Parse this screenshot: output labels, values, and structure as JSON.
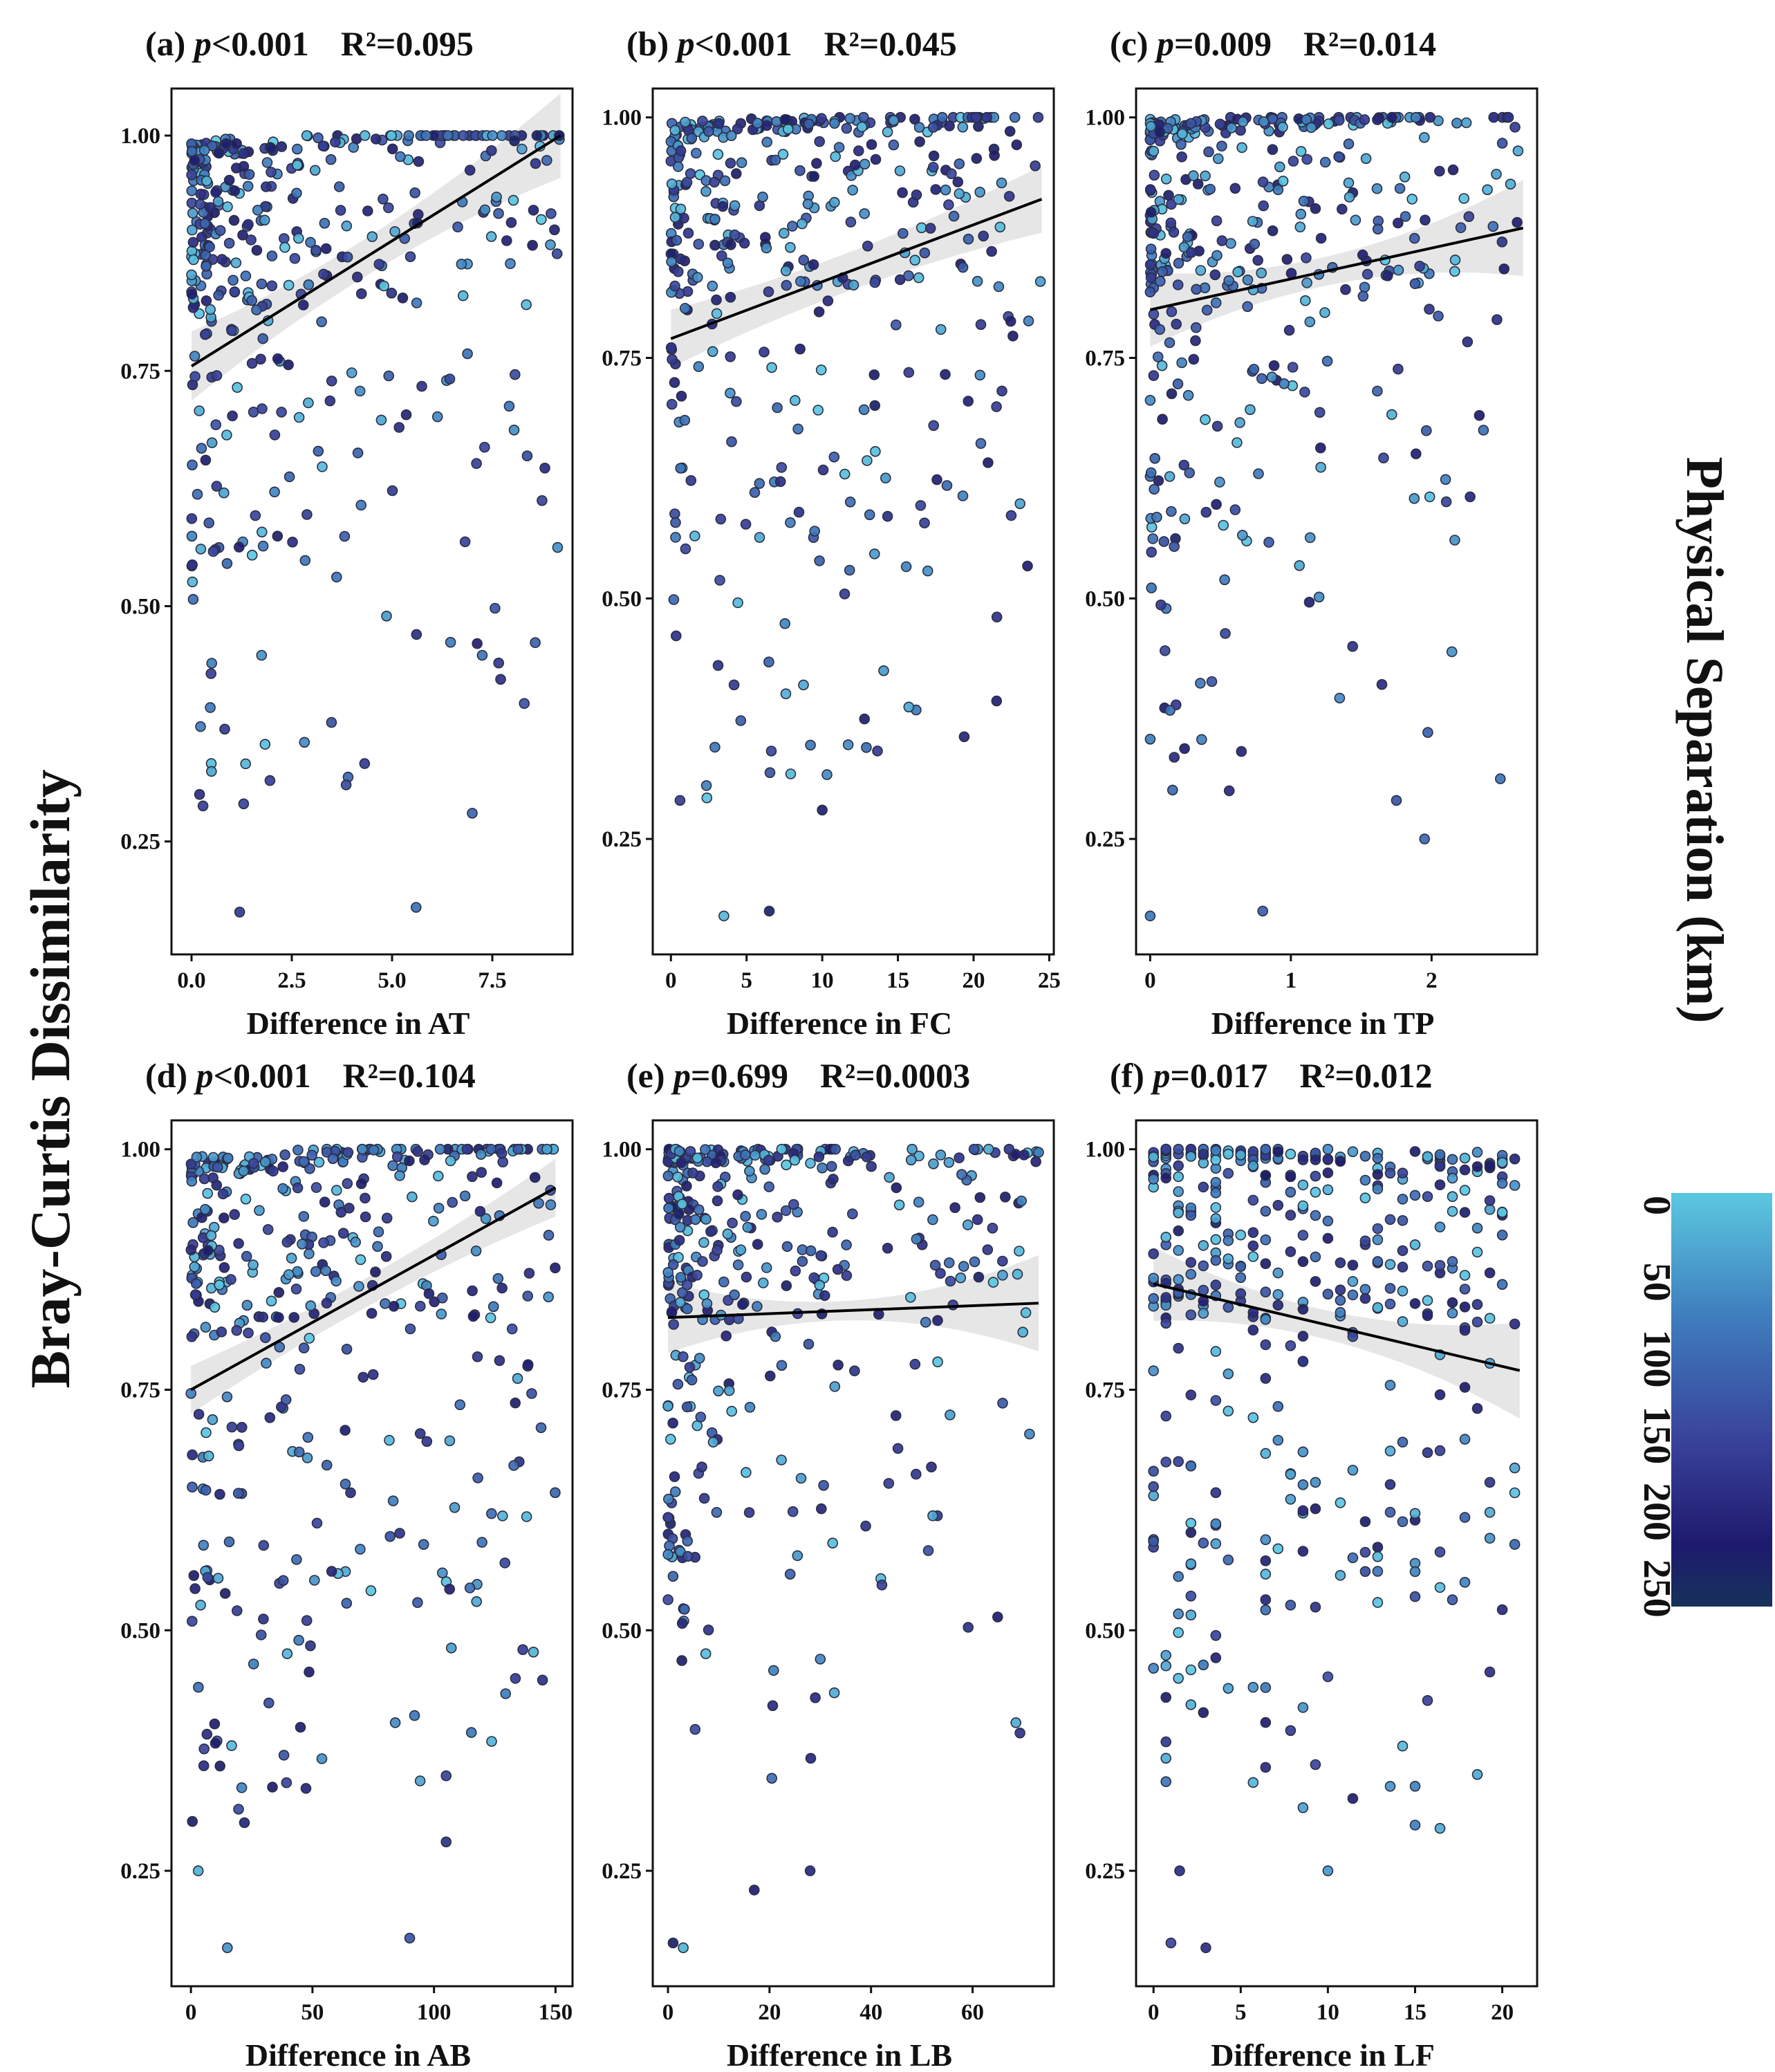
{
  "chart_data": {
    "type": "scatter",
    "shared_ylabel": "Bray-Curtis Dissimilarity",
    "colorbar": {
      "title": "Physical Separation (km)",
      "ticks": [
        "0",
        "50",
        "100",
        "150",
        "200",
        "250"
      ],
      "range": [
        0,
        270
      ],
      "colors": [
        "#5bc8e0",
        "#3e7dbd",
        "#39429a",
        "#1e1a6e",
        "#16325a"
      ]
    },
    "panels": [
      {
        "label": "(a)",
        "p_sym": "p",
        "p_text": "<0.001",
        "r2_text": "R²=0.095",
        "xlabel": "Difference in AT",
        "xlim": [
          -0.5,
          9.5
        ],
        "ylim": [
          0.13,
          1.05
        ],
        "xticks": [
          0,
          2.5,
          5,
          7.5
        ],
        "xtick_labels": [
          "0.0",
          "2.5",
          "5.0",
          "7.5"
        ],
        "yticks": [
          0.25,
          0.5,
          0.75,
          1
        ],
        "ytick_labels": [
          "0.25",
          "0.50",
          "0.75",
          "1.00"
        ],
        "xmax": 9.2,
        "fit": [
          0.755,
          1.0
        ],
        "band": [
          0.02,
          0.045
        ],
        "cluster": "low",
        "integer_x": false,
        "n": 420,
        "seed": 11,
        "extra_points": [
          [
            1.2,
            0.175
          ],
          [
            5.6,
            0.18
          ],
          [
            7.0,
            0.28
          ],
          [
            0.2,
            0.3
          ],
          [
            1.3,
            0.29
          ]
        ]
      },
      {
        "label": "(b)",
        "p_sym": "p",
        "p_text": "<0.001",
        "r2_text": "R²=0.045",
        "xlabel": "Difference in FC",
        "xlim": [
          -1.2,
          25.3
        ],
        "ylim": [
          0.13,
          1.03
        ],
        "xticks": [
          0,
          5,
          10,
          15,
          20,
          25
        ],
        "xtick_labels": [
          "0",
          "5",
          "10",
          "15",
          "20",
          "25"
        ],
        "yticks": [
          0.25,
          0.5,
          0.75,
          1
        ],
        "ytick_labels": [
          "0.25",
          "0.50",
          "0.75",
          "1.00"
        ],
        "xmax": 24.5,
        "fit": [
          0.77,
          0.915
        ],
        "band": [
          0.02,
          0.035
        ],
        "cluster": "spread",
        "integer_x": false,
        "n": 400,
        "seed": 23,
        "extra_points": [
          [
            3.5,
            0.17
          ],
          [
            6.5,
            0.175
          ],
          [
            10.0,
            0.28
          ],
          [
            0.6,
            0.29
          ]
        ]
      },
      {
        "label": "(c)",
        "p_sym": "p",
        "p_text": "=0.009",
        "r2_text": "R²=0.014",
        "xlabel": "Difference in TP",
        "xlim": [
          -0.1,
          2.75
        ],
        "ylim": [
          0.13,
          1.03
        ],
        "xticks": [
          0,
          1,
          2
        ],
        "xtick_labels": [
          "0",
          "1",
          "2"
        ],
        "yticks": [
          0.25,
          0.5,
          0.75,
          1
        ],
        "ytick_labels": [
          "0.25",
          "0.50",
          "0.75",
          "1.00"
        ],
        "xmax": 2.65,
        "fit": [
          0.8,
          0.885
        ],
        "band": [
          0.015,
          0.05
        ],
        "cluster": "low",
        "integer_x": false,
        "n": 400,
        "seed": 37,
        "extra_points": [
          [
            0.0,
            0.17
          ],
          [
            0.8,
            0.175
          ],
          [
            1.95,
            0.25
          ],
          [
            1.75,
            0.29
          ]
        ]
      },
      {
        "label": "(d)",
        "p_sym": "p",
        "p_text": "<0.001",
        "r2_text": "R²=0.104",
        "xlabel": "Difference in AB",
        "xlim": [
          -8,
          157
        ],
        "ylim": [
          0.13,
          1.03
        ],
        "xticks": [
          0,
          50,
          100,
          150
        ],
        "xtick_labels": [
          "0",
          "50",
          "100",
          "150"
        ],
        "yticks": [
          0.25,
          0.5,
          0.75,
          1
        ],
        "ytick_labels": [
          "0.25",
          "0.50",
          "0.75",
          "1.00"
        ],
        "xmax": 150,
        "fit": [
          0.75,
          0.96
        ],
        "band": [
          0.015,
          0.03
        ],
        "cluster": "spread",
        "integer_x": false,
        "n": 420,
        "seed": 41,
        "extra_points": [
          [
            15,
            0.17
          ],
          [
            90,
            0.18
          ],
          [
            105,
            0.28
          ],
          [
            3,
            0.25
          ],
          [
            22,
            0.3
          ]
        ]
      },
      {
        "label": "(e)",
        "p_sym": "p",
        "p_text": "=0.699",
        "r2_text": "R²=0.0003",
        "xlabel": "Difference in LB",
        "xlim": [
          -3,
          76
        ],
        "ylim": [
          0.13,
          1.03
        ],
        "xticks": [
          0,
          20,
          40,
          60
        ],
        "xtick_labels": [
          "0",
          "20",
          "40",
          "60"
        ],
        "yticks": [
          0.25,
          0.5,
          0.75,
          1
        ],
        "ytick_labels": [
          "0.25",
          "0.50",
          "0.75",
          "1.00"
        ],
        "xmax": 73,
        "fit": [
          0.825,
          0.84
        ],
        "band": [
          0.01,
          0.05
        ],
        "cluster": "low",
        "integer_x": false,
        "n": 400,
        "seed": 53,
        "extra_points": [
          [
            1,
            0.175
          ],
          [
            3,
            0.17
          ],
          [
            17,
            0.23
          ],
          [
            28,
            0.25
          ]
        ]
      },
      {
        "label": "(f)",
        "p_sym": "p",
        "p_text": "=0.017",
        "r2_text": "R²=0.012",
        "xlabel": "Difference in LF",
        "xlim": [
          -1,
          22
        ],
        "ylim": [
          0.13,
          1.03
        ],
        "xticks": [
          0,
          5,
          10,
          15,
          20
        ],
        "xtick_labels": [
          "0",
          "5",
          "10",
          "15",
          "20"
        ],
        "yticks": [
          0.25,
          0.5,
          0.75,
          1
        ],
        "ytick_labels": [
          "0.25",
          "0.50",
          "0.75",
          "1.00"
        ],
        "xmax": 21,
        "fit": [
          0.86,
          0.77
        ],
        "band": [
          0.015,
          0.05
        ],
        "cluster": "mid",
        "integer_x": true,
        "n": 440,
        "seed": 67,
        "extra_points": [
          [
            1,
            0.175
          ],
          [
            3,
            0.17
          ],
          [
            10,
            0.25
          ],
          [
            1.5,
            0.25
          ]
        ]
      }
    ]
  }
}
